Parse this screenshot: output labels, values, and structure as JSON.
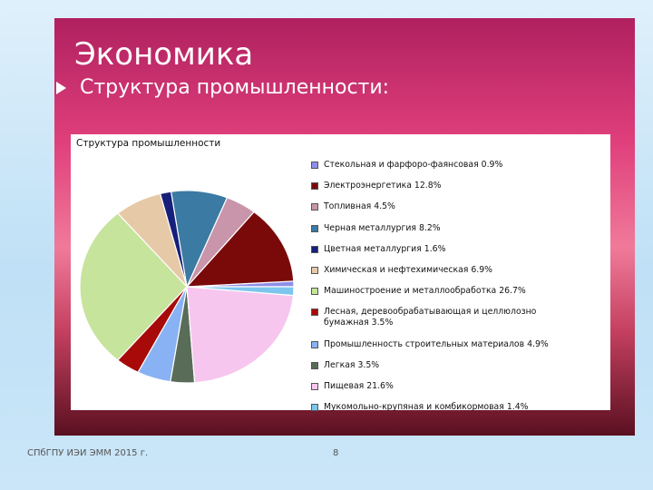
{
  "slide": {
    "title": "Экономика",
    "subtitle": "Структура промышленности:",
    "footer": "СПбГПУ ИЭИ ЭММ 2015 г.",
    "page_number": "8"
  },
  "chart_data": {
    "type": "pie",
    "title": "Структура промышленности",
    "categories": [
      "Стекольная и фарфоро-фаянсовая",
      "Электроэнергетика",
      "Топливная",
      "Черная металлургия",
      "Цветная металлургия",
      "Химическая и нефтехимическая",
      "Машиностроение и металлообработка",
      "Лесная, деревообрабатывающая и целлюлозно бумажная",
      "Промышленность строительных материалов",
      "Легкая",
      "Пищевая",
      "Мукомольно-крупяная и комбикормовая"
    ],
    "values": [
      0.9,
      12.8,
      4.5,
      8.2,
      1.6,
      6.9,
      26.7,
      3.5,
      4.9,
      3.5,
      21.6,
      1.4
    ],
    "value_labels": [
      "0.9%",
      "12.8%",
      "4.5%",
      "8.2%",
      "1.6%",
      "6.9%",
      "26.7%",
      "3.5%",
      "4.9%",
      "3.5%",
      "21.6%",
      "1.4%"
    ],
    "colors": [
      "#8f8fe8",
      "#7a0a0a",
      "#c995aa",
      "#3a7aa3",
      "#16207a",
      "#e6c9a6",
      "#c6e49c",
      "#a80a0a",
      "#88b2f4",
      "#586c58",
      "#f6c6ef",
      "#7cc6ee"
    ]
  }
}
